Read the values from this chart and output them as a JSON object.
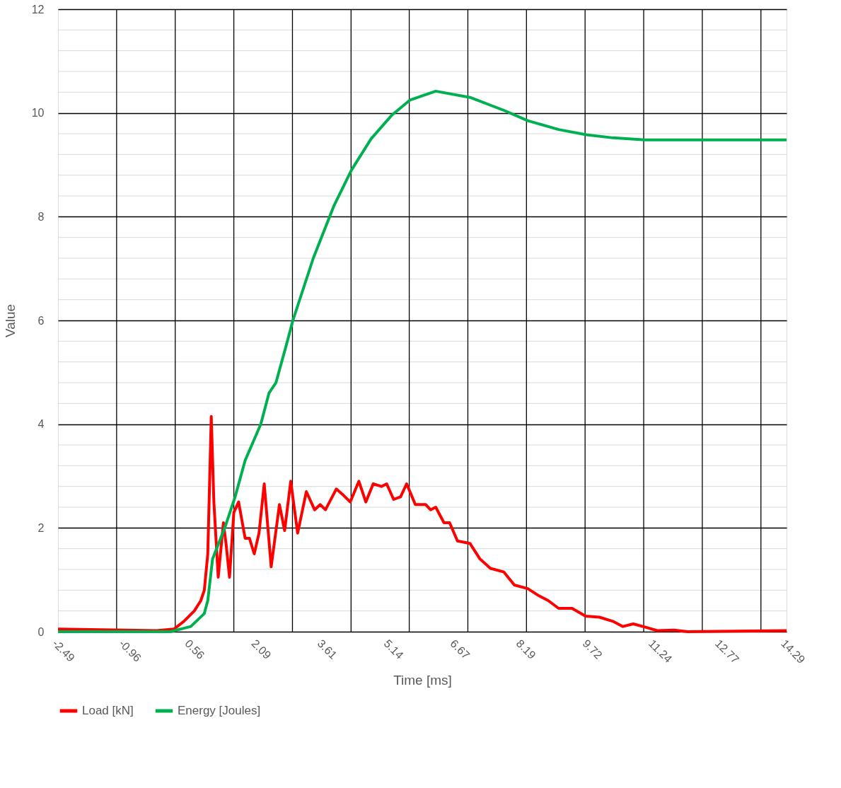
{
  "chart_data": {
    "type": "line",
    "xlabel": "Time [ms]",
    "ylabel": "Value",
    "xlim": [
      -2.49,
      14.29
    ],
    "xticks": [
      -2.49,
      {
        "value": -1.14,
        "label": null
      },
      -0.96,
      {
        "value": 0.21,
        "label": null
      },
      0.56,
      {
        "value": 1.56,
        "label": null
      },
      2.09,
      {
        "value": 2.91,
        "label": null
      },
      3.61,
      {
        "value": 4.26,
        "label": null
      },
      5.14,
      {
        "value": 5.6,
        "label": null
      },
      6.67,
      {
        "value": 6.95,
        "label": null
      },
      8.19,
      {
        "value": 8.3,
        "label": null
      },
      9.72,
      {
        "value": 9.65,
        "label": null
      },
      {
        "value": 11.0,
        "label": null
      },
      11.24,
      {
        "value": 12.35,
        "label": null
      },
      12.77,
      {
        "value": 13.7,
        "label": null
      },
      14.29
    ],
    "ylim": [
      0,
      12
    ],
    "yticks": [
      0,
      {
        "value": 0.4,
        "label": null
      },
      {
        "value": 0.8,
        "label": null
      },
      {
        "value": 1.2,
        "label": null
      },
      {
        "value": 1.6,
        "label": null
      },
      2,
      {
        "value": 2.4,
        "label": null
      },
      {
        "value": 2.8,
        "label": null
      },
      {
        "value": 3.2,
        "label": null
      },
      {
        "value": 3.6,
        "label": null
      },
      4,
      {
        "value": 4.4,
        "label": null
      },
      {
        "value": 4.8,
        "label": null
      },
      {
        "value": 5.2,
        "label": null
      },
      {
        "value": 5.6,
        "label": null
      },
      6,
      {
        "value": 6.4,
        "label": null
      },
      {
        "value": 6.8,
        "label": null
      },
      {
        "value": 7.2,
        "label": null
      },
      {
        "value": 7.6,
        "label": null
      },
      8,
      {
        "value": 8.4,
        "label": null
      },
      {
        "value": 8.8,
        "label": null
      },
      {
        "value": 9.2,
        "label": null
      },
      {
        "value": 9.6,
        "label": null
      },
      10,
      {
        "value": 10.4,
        "label": null
      },
      {
        "value": 10.8,
        "label": null
      },
      {
        "value": 11.2,
        "label": null
      },
      {
        "value": 11.6,
        "label": null
      },
      12
    ],
    "grid": true,
    "legend": "bottom",
    "marker": "none",
    "line_style": "solid",
    "series": [
      {
        "name": "Load [kN]",
        "color": "#ff0000",
        "x": [
          -2.49,
          -0.22,
          0.18,
          0.41,
          0.65,
          0.8,
          0.88,
          0.96,
          1.04,
          1.1,
          1.2,
          1.32,
          1.38,
          1.46,
          1.56,
          1.67,
          1.82,
          1.92,
          2.03,
          2.14,
          2.26,
          2.42,
          2.61,
          2.73,
          2.87,
          3.03,
          3.23,
          3.42,
          3.55,
          3.67,
          3.92,
          4.06,
          4.24,
          4.44,
          4.6,
          4.77,
          4.96,
          5.08,
          5.24,
          5.4,
          5.54,
          5.74,
          5.98,
          6.09,
          6.21,
          6.4,
          6.53,
          6.71,
          7.0,
          7.23,
          7.47,
          7.78,
          8.02,
          8.33,
          8.57,
          8.8,
          9.04,
          9.35,
          9.66,
          9.98,
          10.29,
          10.52,
          10.76,
          11.07,
          11.31,
          11.7,
          12.01,
          14.29
        ],
        "values": [
          0.05,
          0.02,
          0.05,
          0.2,
          0.4,
          0.6,
          0.8,
          1.5,
          4.15,
          2.5,
          1.05,
          2.1,
          1.7,
          1.05,
          2.3,
          2.5,
          1.8,
          1.8,
          1.5,
          1.9,
          2.85,
          1.25,
          2.45,
          1.95,
          2.9,
          1.9,
          2.7,
          2.35,
          2.45,
          2.35,
          2.75,
          2.65,
          2.5,
          2.9,
          2.5,
          2.85,
          2.8,
          2.85,
          2.55,
          2.6,
          2.85,
          2.45,
          2.45,
          2.35,
          2.4,
          2.1,
          2.1,
          1.75,
          1.7,
          1.4,
          1.22,
          1.15,
          0.9,
          0.83,
          0.7,
          0.6,
          0.45,
          0.45,
          0.3,
          0.28,
          0.2,
          0.1,
          0.15,
          0.08,
          0.02,
          0.03,
          0.0,
          0.02
        ]
      },
      {
        "name": "Energy [Joules]",
        "color": "#00b050",
        "x": [
          -2.49,
          0.1,
          0.57,
          0.88,
          0.96,
          1.07,
          1.35,
          1.59,
          1.82,
          2.18,
          2.37,
          2.53,
          2.76,
          2.92,
          3.39,
          3.86,
          4.27,
          4.72,
          5.19,
          5.62,
          6.21,
          7.0,
          7.78,
          8.33,
          9.04,
          9.68,
          10.29,
          11.03,
          14.29
        ],
        "values": [
          0,
          0,
          0.1,
          0.35,
          0.6,
          1.4,
          2.0,
          2.6,
          3.3,
          4.0,
          4.6,
          4.8,
          5.5,
          6.0,
          7.2,
          8.2,
          8.9,
          9.5,
          9.95,
          10.25,
          10.42,
          10.3,
          10.05,
          9.85,
          9.68,
          9.58,
          9.52,
          9.48,
          9.48
        ]
      }
    ]
  }
}
